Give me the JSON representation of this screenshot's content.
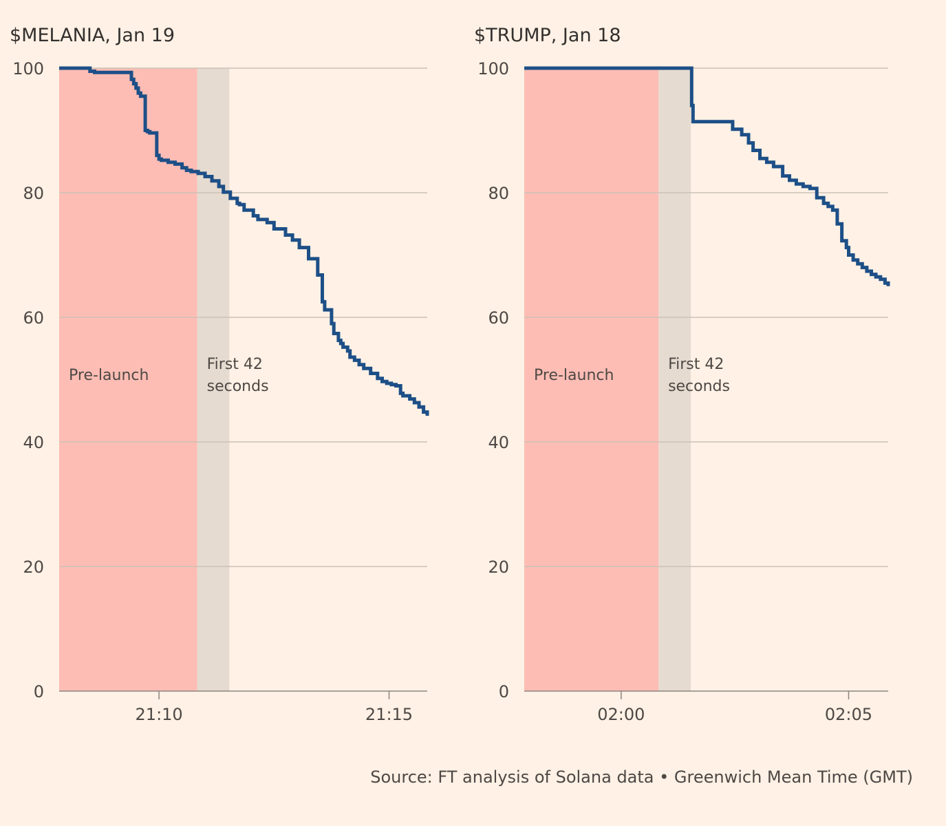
{
  "colors": {
    "background": "#fff1e5",
    "prelaunch_band": "#fdbdb4",
    "first42_band": "#e6dbd0",
    "line": "#1d4f87",
    "gridline": "#ccc1b7",
    "axis": "#8c8580"
  },
  "source_text": "Source: FT analysis of Solana data • Greenwich Mean Time (GMT)",
  "chart_data": [
    {
      "type": "line",
      "line_shape": "step",
      "title": "$MELANIA, Jan 19",
      "xlabel": "",
      "ylabel": "",
      "ylim": [
        0,
        100
      ],
      "yticks": [
        0,
        20,
        40,
        60,
        80,
        100
      ],
      "xlim": [
        -2.17,
        5.83
      ],
      "xticks": [
        {
          "value": 0,
          "label": "21:10"
        },
        {
          "value": 5,
          "label": "21:15"
        }
      ],
      "x_unit": "minutes after 21:10 GMT",
      "grid": true,
      "bands": [
        {
          "name": "prelaunch",
          "label": [
            "Pre-launch"
          ],
          "x0": -2.17,
          "x1": 0.83
        },
        {
          "name": "first42",
          "label": [
            "First 42",
            "seconds"
          ],
          "x0": 0.83,
          "x1": 1.53
        }
      ],
      "series": [
        {
          "name": "$MELANIA",
          "x": [
            -2.17,
            -1.5,
            -1.4,
            -0.65,
            -0.6,
            -0.55,
            -0.5,
            -0.45,
            -0.4,
            -0.3,
            -0.25,
            -0.2,
            -0.05,
            0.0,
            0.05,
            0.2,
            0.35,
            0.5,
            0.6,
            0.7,
            0.85,
            1.0,
            1.15,
            1.3,
            1.4,
            1.55,
            1.7,
            1.75,
            1.85,
            2.05,
            2.15,
            2.35,
            2.5,
            2.75,
            2.9,
            3.05,
            3.25,
            3.45,
            3.55,
            3.6,
            3.75,
            3.8,
            3.9,
            3.95,
            4.0,
            4.1,
            4.15,
            4.25,
            4.35,
            4.45,
            4.6,
            4.75,
            4.85,
            4.95,
            5.05,
            5.15,
            5.25,
            5.3,
            5.45,
            5.55,
            5.65,
            5.75,
            5.83
          ],
          "y": [
            100,
            99.5,
            99.3,
            99.3,
            98.2,
            97.5,
            96.8,
            96.0,
            95.5,
            90,
            89.8,
            89.6,
            86,
            85.4,
            85.2,
            84.9,
            84.6,
            84.0,
            83.6,
            83.4,
            83.1,
            82.6,
            81.9,
            81.0,
            80.1,
            79.1,
            78.3,
            78.1,
            77.2,
            76.3,
            75.7,
            75.2,
            74.2,
            73.2,
            72.4,
            71.2,
            69.4,
            66.8,
            62.5,
            61.2,
            59.0,
            57.4,
            56.3,
            55.8,
            55.2,
            54.6,
            53.6,
            53.1,
            52.4,
            51.8,
            51.0,
            50.2,
            49.7,
            49.4,
            49.2,
            49.0,
            47.8,
            47.4,
            46.9,
            46.3,
            45.6,
            44.8,
            44.2
          ]
        }
      ]
    },
    {
      "type": "line",
      "line_shape": "step",
      "title": "$TRUMP, Jan 18",
      "xlabel": "",
      "ylabel": "",
      "ylim": [
        0,
        100
      ],
      "yticks": [
        0,
        20,
        40,
        60,
        80,
        100
      ],
      "xlim": [
        -2.13,
        5.87
      ],
      "xticks": [
        {
          "value": 0,
          "label": "02:00"
        },
        {
          "value": 5,
          "label": "02:05"
        }
      ],
      "x_unit": "minutes after 02:00 GMT",
      "grid": true,
      "bands": [
        {
          "name": "prelaunch",
          "label": [
            "Pre-launch"
          ],
          "x0": -2.13,
          "x1": 0.82
        },
        {
          "name": "first42",
          "label": [
            "First 42",
            "seconds"
          ],
          "x0": 0.82,
          "x1": 1.53
        }
      ],
      "series": [
        {
          "name": "$TRUMP",
          "x": [
            -2.13,
            1.55,
            1.58,
            2.3,
            2.45,
            2.65,
            2.8,
            2.9,
            3.05,
            3.2,
            3.35,
            3.55,
            3.7,
            3.85,
            4.0,
            4.15,
            4.3,
            4.45,
            4.55,
            4.65,
            4.75,
            4.85,
            4.95,
            5.0,
            5.1,
            5.2,
            5.3,
            5.4,
            5.5,
            5.6,
            5.7,
            5.8,
            5.87
          ],
          "y": [
            100,
            94,
            91.4,
            91.4,
            90.2,
            89.3,
            88.0,
            86.8,
            85.5,
            84.9,
            84.2,
            82.7,
            82.0,
            81.4,
            81.0,
            80.7,
            79.2,
            78.3,
            77.8,
            77.2,
            75.0,
            72.3,
            71.2,
            70.0,
            69.2,
            68.6,
            68.0,
            67.4,
            66.9,
            66.5,
            66.1,
            65.5,
            65.0
          ]
        }
      ]
    }
  ]
}
